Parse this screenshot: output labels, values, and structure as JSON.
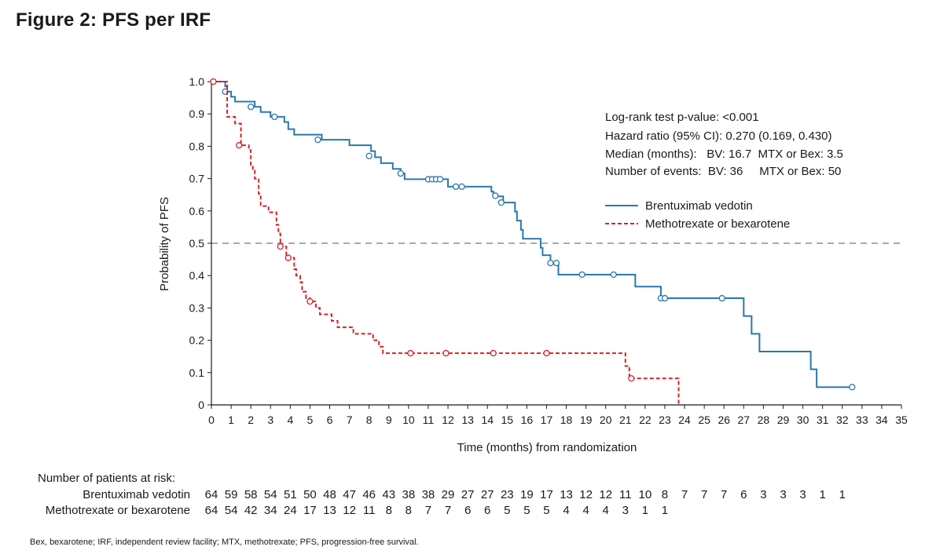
{
  "figure": {
    "title": "Figure 2: PFS per IRF",
    "footnote": "Bex, bexarotene; IRF, independent review facility; MTX, methotrexate; PFS, progression-free survival."
  },
  "stats": {
    "line1": "Log-rank test p-value: <0.001",
    "line2": "Hazard ratio (95% CI): 0.270 (0.169, 0.430)",
    "line3": "Median (months):   BV: 16.7  MTX or Bex: 3.5",
    "line4": "Number of events:  BV: 36     MTX or Bex: 50"
  },
  "colors": {
    "bv": "#2a78ab",
    "mtx": "#d2232a",
    "ref": "#555555"
  },
  "chart_data": {
    "type": "line",
    "xlabel": "Time (months) from randomization",
    "ylabel": "Probability of  PFS",
    "xlim": [
      0,
      35
    ],
    "ylim": [
      0,
      1.0
    ],
    "x_ticks": [
      "0",
      "1",
      "2",
      "3",
      "4",
      "5",
      "6",
      "7",
      "8",
      "9",
      "10",
      "11",
      "12",
      "13",
      "14",
      "15",
      "16",
      "17",
      "18",
      "19",
      "20",
      "21",
      "22",
      "23",
      "24",
      "25",
      "26",
      "27",
      "28",
      "29",
      "30",
      "31",
      "32",
      "33",
      "34",
      "35"
    ],
    "y_ticks": [
      "0",
      "0.1",
      "0.2",
      "0.3",
      "0.4",
      "0.5",
      "0.6",
      "0.7",
      "0.8",
      "0.9",
      "1.0"
    ],
    "reference_line": 0.5,
    "legend_position": "upper-right",
    "series": [
      {
        "name": "Brentuximab vedotin",
        "style": "solid",
        "steps": [
          [
            0,
            1.0
          ],
          [
            0.7,
            0.985
          ],
          [
            0.8,
            0.969
          ],
          [
            1.0,
            0.953
          ],
          [
            1.2,
            0.938
          ],
          [
            2.2,
            0.922
          ],
          [
            2.5,
            0.906
          ],
          [
            3.0,
            0.891
          ],
          [
            3.7,
            0.875
          ],
          [
            3.9,
            0.853
          ],
          [
            4.2,
            0.836
          ],
          [
            5.6,
            0.82
          ],
          [
            7.0,
            0.803
          ],
          [
            8.1,
            0.785
          ],
          [
            8.3,
            0.766
          ],
          [
            8.6,
            0.748
          ],
          [
            9.2,
            0.73
          ],
          [
            9.6,
            0.716
          ],
          [
            9.8,
            0.698
          ],
          [
            12.0,
            0.675
          ],
          [
            14.2,
            0.66
          ],
          [
            14.3,
            0.645
          ],
          [
            14.8,
            0.626
          ],
          [
            15.4,
            0.598
          ],
          [
            15.5,
            0.57
          ],
          [
            15.7,
            0.542
          ],
          [
            15.8,
            0.514
          ],
          [
            16.7,
            0.486
          ],
          [
            16.8,
            0.463
          ],
          [
            17.2,
            0.439
          ],
          [
            17.6,
            0.403
          ],
          [
            21.5,
            0.366
          ],
          [
            22.8,
            0.33
          ],
          [
            27.0,
            0.275
          ],
          [
            27.4,
            0.22
          ],
          [
            27.8,
            0.165
          ],
          [
            30.4,
            0.11
          ],
          [
            30.7,
            0.055
          ],
          [
            32.5,
            0.055
          ]
        ],
        "censored": [
          [
            0.1,
            1.0
          ],
          [
            0.7,
            0.969
          ],
          [
            2.0,
            0.922
          ],
          [
            3.2,
            0.891
          ],
          [
            5.4,
            0.82
          ],
          [
            8.0,
            0.77
          ],
          [
            9.6,
            0.716
          ],
          [
            11.0,
            0.698
          ],
          [
            11.2,
            0.698
          ],
          [
            11.4,
            0.698
          ],
          [
            11.6,
            0.698
          ],
          [
            12.4,
            0.675
          ],
          [
            12.7,
            0.675
          ],
          [
            14.4,
            0.647
          ],
          [
            14.7,
            0.626
          ],
          [
            17.2,
            0.439
          ],
          [
            17.5,
            0.439
          ],
          [
            18.8,
            0.403
          ],
          [
            20.4,
            0.403
          ],
          [
            22.8,
            0.33
          ],
          [
            23.0,
            0.33
          ],
          [
            25.9,
            0.33
          ],
          [
            32.5,
            0.055
          ]
        ]
      },
      {
        "name": "Methotrexate or bexarotene",
        "style": "dashed",
        "steps": [
          [
            0,
            1.0
          ],
          [
            0.8,
            0.891
          ],
          [
            1.2,
            0.87
          ],
          [
            1.5,
            0.803
          ],
          [
            1.9,
            0.788
          ],
          [
            2.0,
            0.74
          ],
          [
            2.1,
            0.725
          ],
          [
            2.2,
            0.7
          ],
          [
            2.4,
            0.653
          ],
          [
            2.5,
            0.615
          ],
          [
            2.9,
            0.596
          ],
          [
            3.3,
            0.557
          ],
          [
            3.4,
            0.53
          ],
          [
            3.5,
            0.49
          ],
          [
            3.8,
            0.455
          ],
          [
            4.2,
            0.42
          ],
          [
            4.3,
            0.4
          ],
          [
            4.5,
            0.38
          ],
          [
            4.6,
            0.35
          ],
          [
            4.8,
            0.33
          ],
          [
            5.0,
            0.32
          ],
          [
            5.3,
            0.3
          ],
          [
            5.5,
            0.28
          ],
          [
            6.1,
            0.26
          ],
          [
            6.4,
            0.24
          ],
          [
            7.2,
            0.22
          ],
          [
            8.2,
            0.2
          ],
          [
            8.5,
            0.18
          ],
          [
            8.7,
            0.16
          ],
          [
            21.0,
            0.12
          ],
          [
            21.2,
            0.082
          ],
          [
            23.7,
            0.0
          ]
        ],
        "censored": [
          [
            0.1,
            1.0
          ],
          [
            1.4,
            0.803
          ],
          [
            3.5,
            0.49
          ],
          [
            3.9,
            0.455
          ],
          [
            5.0,
            0.32
          ],
          [
            10.1,
            0.16
          ],
          [
            11.9,
            0.16
          ],
          [
            14.3,
            0.16
          ],
          [
            17.0,
            0.16
          ],
          [
            21.3,
            0.082
          ]
        ]
      }
    ]
  },
  "risk_table": {
    "title": "Number of patients at risk:",
    "rows": [
      {
        "label": "Brentuximab vedotin",
        "values": [
          "64",
          "59",
          "58",
          "54",
          "51",
          "50",
          "48",
          "47",
          "46",
          "43",
          "38",
          "38",
          "29",
          "27",
          "27",
          "23",
          "19",
          "17",
          "13",
          "12",
          "12",
          "11",
          "10",
          "8",
          "7",
          "7",
          "7",
          "6",
          "3",
          "3",
          "3",
          "1",
          "1"
        ]
      },
      {
        "label": "Methotrexate or bexarotene",
        "values": [
          "64",
          "54",
          "42",
          "34",
          "24",
          "17",
          "13",
          "12",
          "11",
          "8",
          "8",
          "7",
          "7",
          "6",
          "6",
          "5",
          "5",
          "5",
          "4",
          "4",
          "4",
          "3",
          "1",
          "1"
        ]
      }
    ]
  }
}
